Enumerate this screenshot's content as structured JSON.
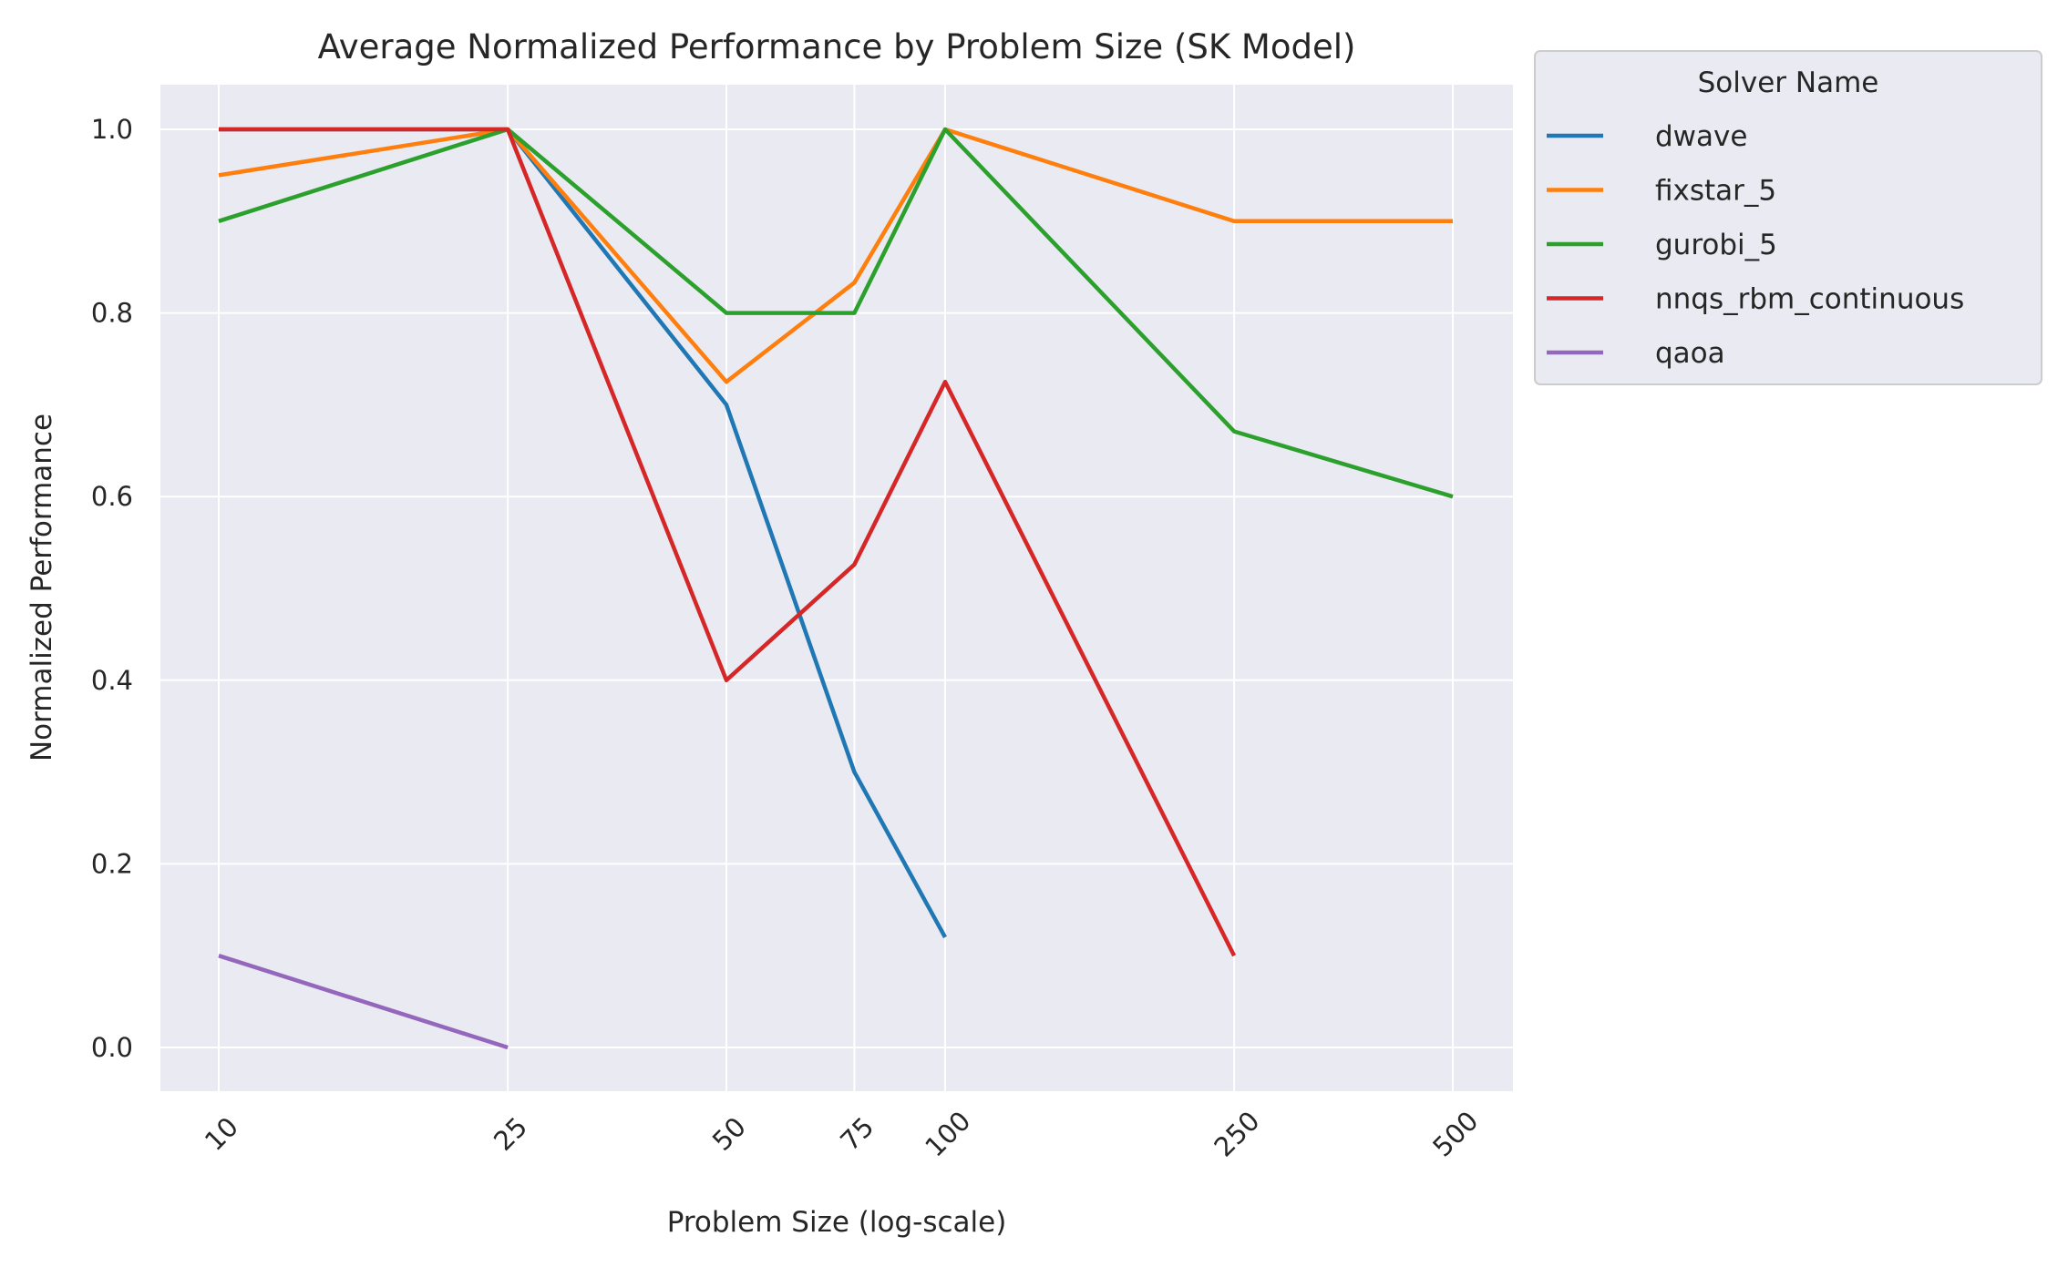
{
  "chart_data": {
    "type": "line",
    "title": "Average Normalized Performance by Problem Size (SK Model)",
    "xlabel": "Problem Size (log-scale)",
    "ylabel": "Normalized Performance",
    "xscale": "log",
    "xticks": [
      10,
      25,
      50,
      75,
      100,
      250,
      500
    ],
    "xtick_labels": [
      "10",
      "25",
      "50",
      "75",
      "100",
      "250",
      "500"
    ],
    "yticks": [
      0.0,
      0.2,
      0.4,
      0.6,
      0.8,
      1.0
    ],
    "ytick_labels": [
      "0.0",
      "0.2",
      "0.4",
      "0.6",
      "0.8",
      "1.0"
    ],
    "ylim": [
      -0.048,
      1.05
    ],
    "grid": true,
    "legend": {
      "title": "Solver Name",
      "placement": "outside-right"
    },
    "series": [
      {
        "name": "dwave",
        "color": "#1f77b4",
        "x": [
          10,
          25,
          50,
          75,
          100
        ],
        "values": [
          1.0,
          1.0,
          0.7,
          0.3,
          0.12
        ]
      },
      {
        "name": "fixstar_5",
        "color": "#ff7f0e",
        "x": [
          10,
          25,
          50,
          75,
          100,
          250,
          500
        ],
        "values": [
          0.95,
          1.0,
          0.725,
          0.833,
          1.0,
          0.9,
          0.9
        ]
      },
      {
        "name": "gurobi_5",
        "color": "#2ca02c",
        "x": [
          10,
          25,
          50,
          75,
          100,
          250,
          500
        ],
        "values": [
          0.9,
          1.0,
          0.8,
          0.8,
          1.0,
          0.671,
          0.6
        ]
      },
      {
        "name": "nnqs_rbm_continuous",
        "color": "#d62728",
        "x": [
          10,
          25,
          50,
          75,
          100,
          250
        ],
        "values": [
          1.0,
          1.0,
          0.4,
          0.526,
          0.725,
          0.1
        ]
      },
      {
        "name": "qaoa",
        "color": "#9467bd",
        "x": [
          10,
          25
        ],
        "values": [
          0.1,
          0.0
        ]
      }
    ]
  }
}
